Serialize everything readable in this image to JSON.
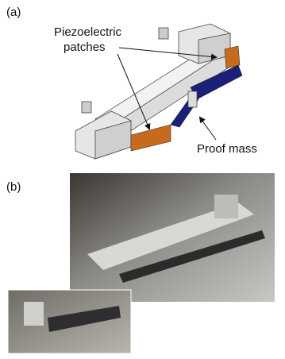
{
  "panel_a": {
    "label": "(a)",
    "piezoelectric_label": [
      "Piezoelectric",
      "patches"
    ],
    "proof_mass_label": "Proof mass"
  },
  "panel_b": {
    "label": "(b)"
  }
}
